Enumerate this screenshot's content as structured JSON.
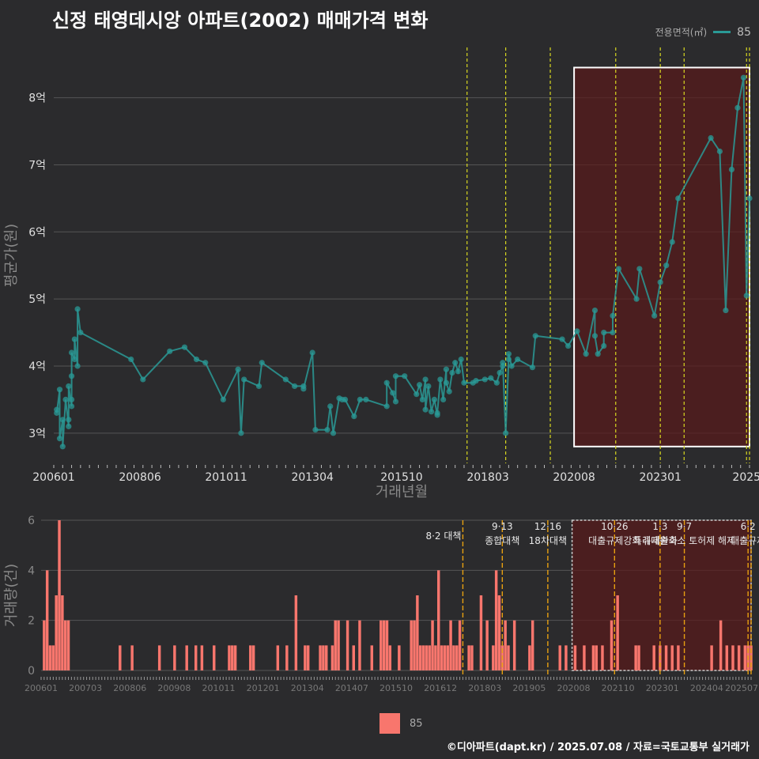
{
  "title": "신정 태영데시앙 아파트(2002) 매매가격 변화",
  "legend_top": {
    "label": "전용면적(㎡)",
    "series": "85"
  },
  "legend_bottom": {
    "series": "85"
  },
  "footer": "©디아파트(dapt.kr) / 2025.07.08 / 자료=국토교통부 실거래가",
  "colors": {
    "line": "#2a9a96",
    "bar": "#f8766d",
    "policy": "#d8d820",
    "policy2": "#e8a010",
    "shade": "#5a1a1a"
  },
  "chart_data": [
    {
      "type": "line",
      "xlabel": "거래년월",
      "ylabel": "평균가(원)",
      "ylim": [
        2.55,
        8.75
      ],
      "xlim": [
        "2006-01",
        "2025-07"
      ],
      "yticks": [
        3,
        4,
        5,
        6,
        7,
        8
      ],
      "ytick_labels": [
        "3억",
        "4억",
        "5억",
        "6억",
        "7억",
        "8억"
      ],
      "xticks": [
        "2006-01",
        "2008-06",
        "2010-11",
        "2013-04",
        "2015-10",
        "2018-03",
        "2020-08",
        "2023-01",
        "2025-06"
      ],
      "xtick_labels": [
        "200601",
        "200806",
        "201011",
        "201304",
        "201510",
        "201803",
        "202008",
        "202301",
        "2025"
      ],
      "grid": true,
      "legend": "top-right",
      "series": [
        {
          "name": "85",
          "points": [
            [
              "2006-02",
              3.35
            ],
            [
              "2006-02",
              3.3
            ],
            [
              "2006-03",
              3.65
            ],
            [
              "2006-03",
              2.92
            ],
            [
              "2006-04",
              3.2
            ],
            [
              "2006-04",
              2.8
            ],
            [
              "2006-05",
              3.5
            ],
            [
              "2006-06",
              3.1
            ],
            [
              "2006-06",
              3.2
            ],
            [
              "2006-06",
              3.7
            ],
            [
              "2006-07",
              3.4
            ],
            [
              "2006-07",
              3.5
            ],
            [
              "2006-07",
              3.85
            ],
            [
              "2006-07",
              4.2
            ],
            [
              "2006-08",
              4.1
            ],
            [
              "2006-08",
              4.4
            ],
            [
              "2006-09",
              4.0
            ],
            [
              "2006-09",
              4.85
            ],
            [
              "2006-10",
              4.5
            ],
            [
              "2008-03",
              4.1
            ],
            [
              "2008-07",
              3.8
            ],
            [
              "2009-04",
              4.22
            ],
            [
              "2009-09",
              4.28
            ],
            [
              "2010-01",
              4.1
            ],
            [
              "2010-04",
              4.05
            ],
            [
              "2010-10",
              3.5
            ],
            [
              "2011-03",
              3.95
            ],
            [
              "2011-04",
              3.0
            ],
            [
              "2011-05",
              3.8
            ],
            [
              "2011-10",
              3.7
            ],
            [
              "2011-11",
              4.05
            ],
            [
              "2012-07",
              3.8
            ],
            [
              "2012-10",
              3.7
            ],
            [
              "2013-01",
              3.7
            ],
            [
              "2013-01",
              3.66
            ],
            [
              "2013-04",
              4.2
            ],
            [
              "2013-05",
              3.05
            ],
            [
              "2013-09",
              3.05
            ],
            [
              "2013-10",
              3.4
            ],
            [
              "2013-11",
              3.0
            ],
            [
              "2014-01",
              3.52
            ],
            [
              "2014-02",
              3.5
            ],
            [
              "2014-03",
              3.5
            ],
            [
              "2014-06",
              3.25
            ],
            [
              "2014-08",
              3.5
            ],
            [
              "2014-10",
              3.5
            ],
            [
              "2015-05",
              3.4
            ],
            [
              "2015-05",
              3.75
            ],
            [
              "2015-07",
              3.6
            ],
            [
              "2015-08",
              3.47
            ],
            [
              "2015-08",
              3.85
            ],
            [
              "2015-11",
              3.85
            ],
            [
              "2016-03",
              3.58
            ],
            [
              "2016-04",
              3.72
            ],
            [
              "2016-05",
              3.5
            ],
            [
              "2016-06",
              3.8
            ],
            [
              "2016-06",
              3.35
            ],
            [
              "2016-07",
              3.7
            ],
            [
              "2016-08",
              3.32
            ],
            [
              "2016-09",
              3.5
            ],
            [
              "2016-10",
              3.27
            ],
            [
              "2016-10",
              3.3
            ],
            [
              "2016-11",
              3.8
            ],
            [
              "2016-12",
              3.5
            ],
            [
              "2017-01",
              3.95
            ],
            [
              "2017-01",
              3.75
            ],
            [
              "2017-02",
              3.62
            ],
            [
              "2017-03",
              3.9
            ],
            [
              "2017-04",
              4.05
            ],
            [
              "2017-05",
              3.92
            ],
            [
              "2017-06",
              4.1
            ],
            [
              "2017-07",
              3.75
            ],
            [
              "2017-10",
              3.75
            ],
            [
              "2017-11",
              3.78
            ],
            [
              "2018-02",
              3.8
            ],
            [
              "2018-04",
              3.82
            ],
            [
              "2018-06",
              3.75
            ],
            [
              "2018-07",
              3.9
            ],
            [
              "2018-08",
              4.0
            ],
            [
              "2018-08",
              4.05
            ],
            [
              "2018-09",
              3.0
            ],
            [
              "2018-10",
              4.1
            ],
            [
              "2018-10",
              4.18
            ],
            [
              "2018-11",
              4.0
            ],
            [
              "2019-01",
              4.1
            ],
            [
              "2019-06",
              3.98
            ],
            [
              "2019-07",
              4.45
            ],
            [
              "2020-04",
              4.4
            ],
            [
              "2020-06",
              4.3
            ],
            [
              "2020-09",
              4.52
            ],
            [
              "2020-12",
              4.18
            ],
            [
              "2021-03",
              4.83
            ],
            [
              "2021-03",
              4.45
            ],
            [
              "2021-04",
              4.18
            ],
            [
              "2021-06",
              4.3
            ],
            [
              "2021-06",
              4.5
            ],
            [
              "2021-09",
              4.5
            ],
            [
              "2021-09",
              4.75
            ],
            [
              "2021-11",
              5.45
            ],
            [
              "2022-05",
              5.0
            ],
            [
              "2022-06",
              5.45
            ],
            [
              "2022-11",
              4.75
            ],
            [
              "2023-01",
              5.25
            ],
            [
              "2023-03",
              5.5
            ],
            [
              "2023-05",
              5.85
            ],
            [
              "2023-07",
              6.5
            ],
            [
              "2024-06",
              7.4
            ],
            [
              "2024-09",
              7.2
            ],
            [
              "2024-11",
              4.83
            ],
            [
              "2025-01",
              6.93
            ],
            [
              "2025-03",
              7.85
            ],
            [
              "2025-05",
              8.3
            ],
            [
              "2025-06",
              5.05
            ],
            [
              "2025-07",
              6.5
            ]
          ]
        }
      ],
      "policy_lines": [
        "2017-08",
        "2018-09",
        "2019-12",
        "2021-10",
        "2023-01",
        "2023-09",
        "2025-06",
        "2025-07"
      ],
      "highlight_box": {
        "from": "2020-08",
        "to": "2025-07",
        "ymin": 2.8,
        "ymax": 8.45
      }
    },
    {
      "type": "bar",
      "xlabel": "",
      "ylabel": "거래량(건)",
      "ylim": [
        0,
        6
      ],
      "yticks": [
        0,
        2,
        4,
        6
      ],
      "xtick_labels": [
        "200601",
        "200703",
        "200806",
        "200908",
        "201011",
        "201201",
        "201304",
        "201407",
        "201510",
        "201612",
        "201803",
        "201905",
        "202008",
        "202110",
        "202301",
        "202404",
        "202507"
      ],
      "grid": true,
      "series": [
        {
          "name": "85",
          "values_by_month": {
            "2006-02": 2,
            "2006-03": 4,
            "2006-04": 1,
            "2006-05": 1,
            "2006-06": 3,
            "2006-07": 6,
            "2006-08": 3,
            "2006-09": 2,
            "2006-10": 2,
            "2008-03": 1,
            "2008-07": 1,
            "2009-04": 1,
            "2009-09": 1,
            "2010-01": 1,
            "2010-04": 1,
            "2010-06": 1,
            "2010-10": 1,
            "2011-03": 1,
            "2011-04": 1,
            "2011-05": 1,
            "2011-10": 1,
            "2011-11": 1,
            "2012-07": 1,
            "2012-10": 1,
            "2013-01": 3,
            "2013-04": 1,
            "2013-05": 1,
            "2013-09": 1,
            "2013-10": 1,
            "2013-11": 1,
            "2014-01": 1,
            "2014-02": 2,
            "2014-03": 2,
            "2014-06": 2,
            "2014-08": 1,
            "2014-10": 2,
            "2015-02": 1,
            "2015-05": 2,
            "2015-06": 2,
            "2015-07": 2,
            "2015-08": 1,
            "2015-11": 1,
            "2016-03": 2,
            "2016-04": 2,
            "2016-05": 3,
            "2016-06": 1,
            "2016-07": 1,
            "2016-08": 1,
            "2016-09": 1,
            "2016-10": 2,
            "2016-11": 1,
            "2016-12": 4,
            "2017-01": 1,
            "2017-02": 1,
            "2017-03": 1,
            "2017-04": 2,
            "2017-05": 1,
            "2017-06": 1,
            "2017-07": 2,
            "2017-10": 1,
            "2017-11": 1,
            "2018-02": 3,
            "2018-04": 2,
            "2018-06": 1,
            "2018-07": 4,
            "2018-08": 3,
            "2018-09": 1,
            "2018-10": 2,
            "2018-11": 1,
            "2019-01": 2,
            "2019-06": 1,
            "2019-07": 2,
            "2020-04": 1,
            "2020-06": 1,
            "2020-09": 1,
            "2020-12": 1,
            "2021-03": 1,
            "2021-04": 1,
            "2021-06": 1,
            "2021-09": 2,
            "2021-11": 3,
            "2022-05": 1,
            "2022-06": 1,
            "2022-11": 1,
            "2023-01": 1,
            "2023-03": 1,
            "2023-05": 1,
            "2023-07": 1,
            "2024-06": 1,
            "2024-09": 2,
            "2024-11": 1,
            "2025-01": 1,
            "2025-03": 1,
            "2025-05": 1,
            "2025-06": 1,
            "2025-07": 1
          }
        }
      ],
      "annotations": [
        {
          "date": "2017-08",
          "lines": [
            "8·2 대책"
          ]
        },
        {
          "date": "2018-09",
          "lines": [
            "9·13",
            "종합대책"
          ]
        },
        {
          "date": "2019-12",
          "lines": [
            "12·16",
            "18차대책"
          ]
        },
        {
          "date": "2021-10",
          "lines": [
            "10·26",
            "대출규제강화"
          ]
        },
        {
          "date": "2023-01",
          "lines": [
            "1·3",
            "규제완화"
          ]
        },
        {
          "date": "2023-09",
          "lines": [
            "9·7",
            "특례대출축소 토허제 해제"
          ]
        },
        {
          "date": "2025-06",
          "lines": [
            "6·2",
            "대출규제"
          ]
        }
      ]
    }
  ]
}
